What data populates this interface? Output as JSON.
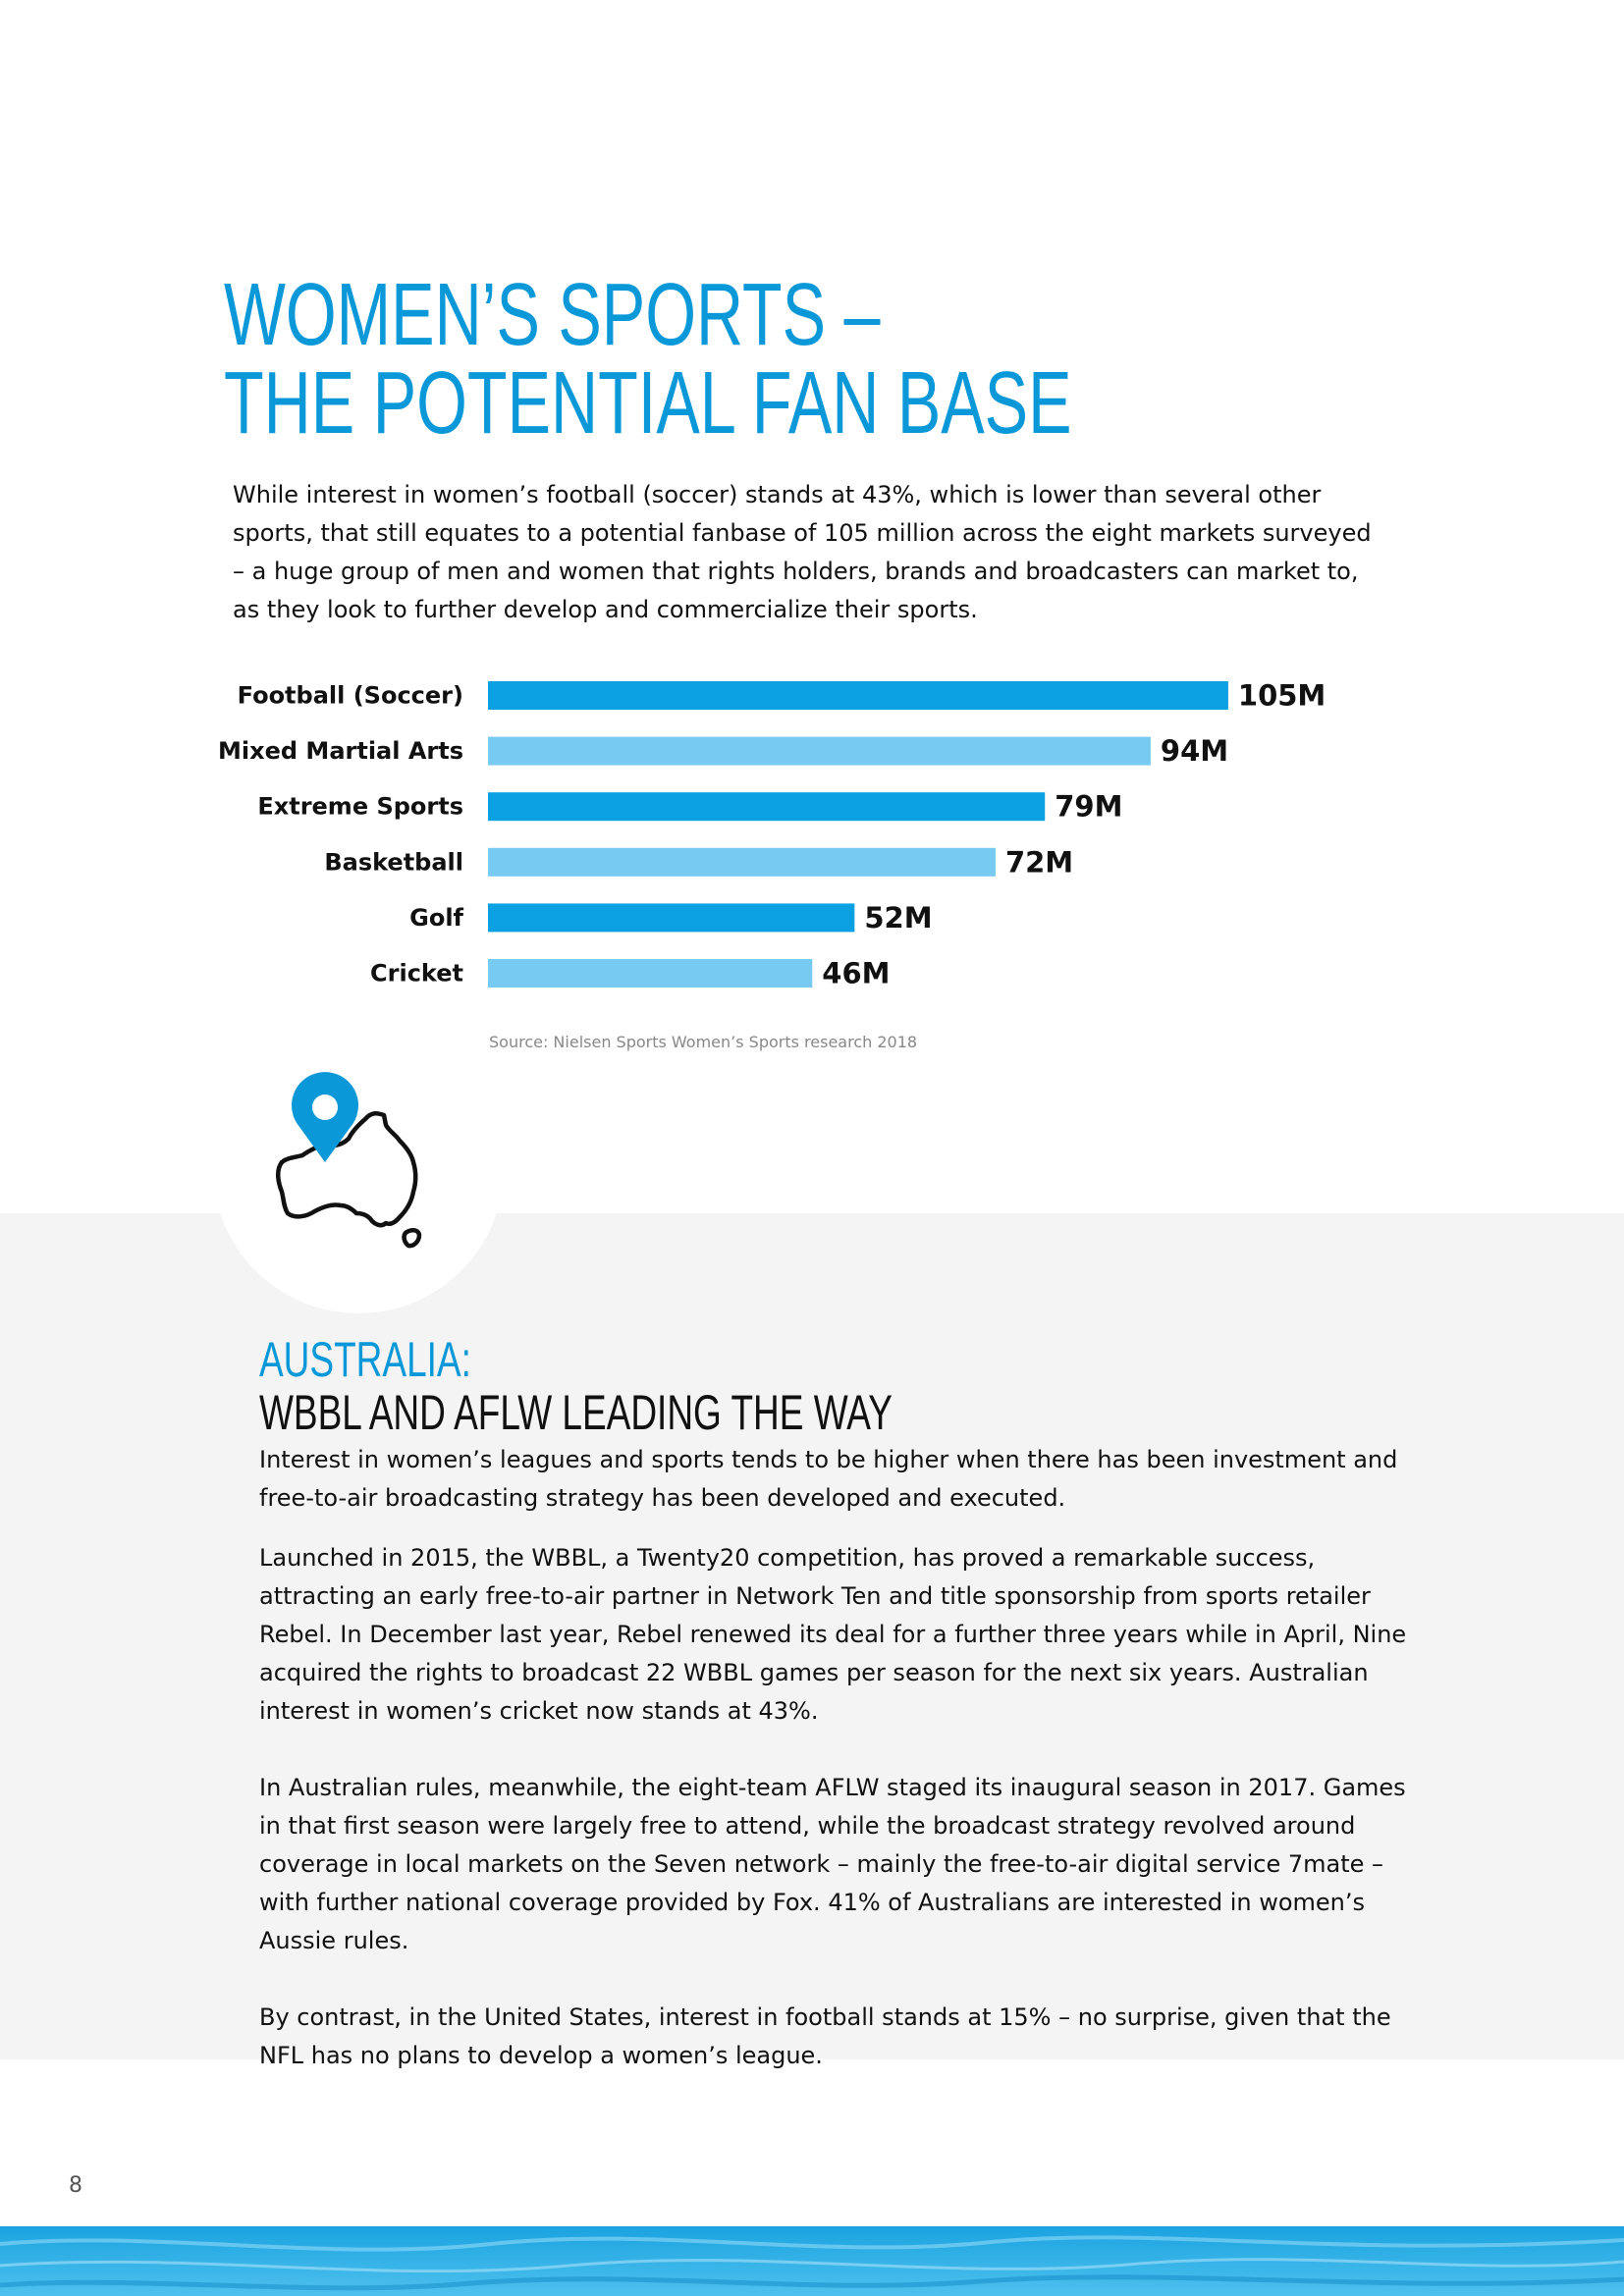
{
  "title": {
    "line1": "WOMEN’S SPORTS –",
    "line2": "THE POTENTIAL FAN BASE"
  },
  "intro": "While interest in women’s football (soccer) stands at 43%, which is lower than several other sports, that still equates to a potential fanbase of 105 million across the eight markets surveyed – a huge group of men and women that rights holders, brands and broadcasters can market to, as they look to further develop and commercialize their sports.",
  "chart_data": {
    "type": "bar",
    "orientation": "horizontal",
    "categories": [
      "Football (Soccer)",
      "Mixed Martial Arts",
      "Extreme Sports",
      "Basketball",
      "Golf",
      "Cricket"
    ],
    "values": [
      105,
      94,
      79,
      72,
      52,
      46
    ],
    "value_labels": [
      "105M",
      "94M",
      "79M",
      "72M",
      "52M",
      "46M"
    ],
    "unit": "M",
    "colors": [
      "#0aa0e2",
      "#77cbf3"
    ],
    "source": "Source: Nielsen Sports Women’s Sports research 2018"
  },
  "map_icon": "australia-map-pin-icon",
  "australia": {
    "heading_blue": "AUSTRALIA:",
    "heading_black": "WBBL AND AFLW LEADING THE WAY",
    "paragraphs": [
      "Interest in women’s leagues and sports tends to be higher when there has been investment and free-to-air broadcasting strategy has been developed and executed.",
      "Launched in 2015, the WBBL, a Twenty20 competition, has proved a remarkable success, attracting an early free-to-air partner in Network Ten and title sponsorship from sports retailer Rebel. In December last year, Rebel renewed its deal for a further three years while in April, Nine acquired the rights to broadcast 22 WBBL games per season for the next six years. Australian interest in women’s cricket now stands at 43%.",
      "In Australian rules, meanwhile, the eight-team AFLW staged its inaugural season in 2017. Games in that first season were largely free to attend, while the broadcast strategy revolved around coverage in local markets on the Seven network – mainly the free-to-air digital service 7mate – with further national coverage provided by Fox. 41% of Australians are interested in women’s Aussie rules.",
      "By contrast, in the United States, interest in football stands at 15% – no surprise, given that the NFL has no plans to develop a women’s league."
    ]
  },
  "page_number": "8",
  "colors": {
    "accent": "#0b98d8",
    "band": "#f4f4f4"
  }
}
